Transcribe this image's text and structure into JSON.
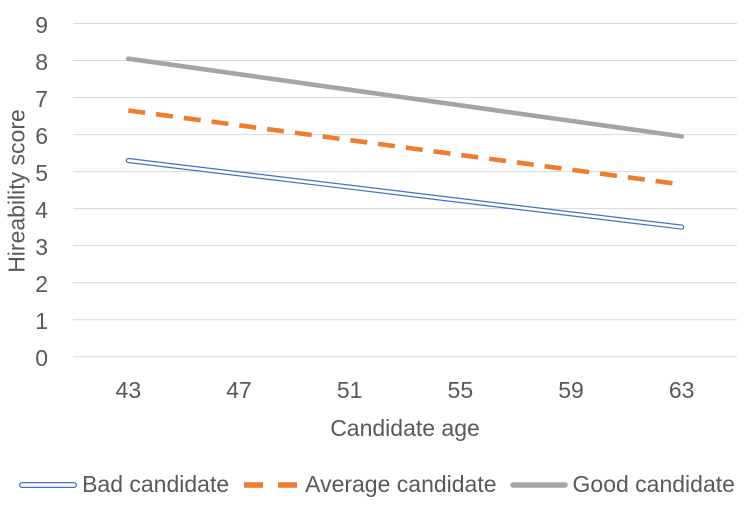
{
  "chart_data": {
    "type": "line",
    "title": "",
    "xlabel": "Candidate age",
    "ylabel": "Hireability score",
    "x": [
      43,
      47,
      51,
      55,
      59,
      63
    ],
    "xticks": [
      "43",
      "47",
      "51",
      "55",
      "59",
      "63"
    ],
    "yticks": [
      "9",
      "8",
      "7",
      "6",
      "5",
      "4",
      "3",
      "2",
      "1",
      "0"
    ],
    "ylim": [
      0,
      9
    ],
    "grid": "horizontal-only",
    "gridline_color": "#d9d9d9",
    "text_color": "#595959",
    "background_color": "#ffffff",
    "legend_position": "bottom",
    "series": [
      {
        "name": "Bad candidate",
        "color": "#4472c4",
        "line_style": "double",
        "values": [
          5.3,
          4.94,
          4.58,
          4.22,
          3.86,
          3.5
        ]
      },
      {
        "name": "Average candidate",
        "color": "#ed7d31",
        "line_style": "dashed",
        "values": [
          6.65,
          6.25,
          5.85,
          5.45,
          5.05,
          4.65
        ]
      },
      {
        "name": "Good candidate",
        "color": "#a5a5a5",
        "line_style": "solid",
        "values": [
          8.05,
          7.63,
          7.21,
          6.79,
          6.37,
          5.95
        ]
      }
    ]
  }
}
